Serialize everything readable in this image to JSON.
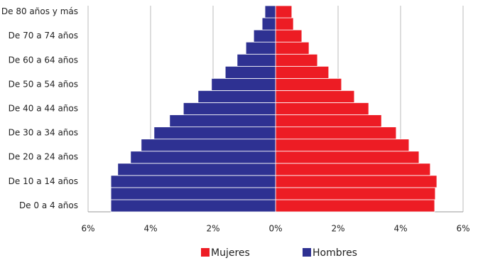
{
  "chart_data": {
    "type": "pyramid",
    "categories": [
      "De 0 a 4 años",
      null,
      "De 10 a 14 años",
      null,
      "De 20 a 24 años",
      null,
      "De 30 a 34 años",
      null,
      "De 40 a 44 años",
      null,
      "De 50 a 54 años",
      null,
      "De 60 a 64 años",
      null,
      "De 70 a 74 años",
      null,
      "De 80 años y más"
    ],
    "series": [
      {
        "name": "Mujeres",
        "color": "#ed1c24",
        "values": [
          5.09,
          5.11,
          5.16,
          4.95,
          4.59,
          4.27,
          3.86,
          3.39,
          2.98,
          2.52,
          2.11,
          1.7,
          1.34,
          1.07,
          0.84,
          0.57,
          0.52
        ]
      },
      {
        "name": "Hombres",
        "color": "#2e3192",
        "values": [
          -5.27,
          -5.27,
          -5.27,
          -5.05,
          -4.64,
          -4.3,
          -3.89,
          -3.39,
          -2.95,
          -2.48,
          -2.05,
          -1.61,
          -1.23,
          -0.95,
          -0.7,
          -0.43,
          -0.34
        ]
      }
    ],
    "xlim": [
      -6,
      6
    ],
    "xticks": [
      {
        "value": -6,
        "label": "6%"
      },
      {
        "value": -4,
        "label": "4%"
      },
      {
        "value": -2,
        "label": "2%"
      },
      {
        "value": 0,
        "label": "0%"
      },
      {
        "value": 2,
        "label": "2%"
      },
      {
        "value": 4,
        "label": "4%"
      },
      {
        "value": 6,
        "label": "6%"
      }
    ],
    "grid": true
  }
}
